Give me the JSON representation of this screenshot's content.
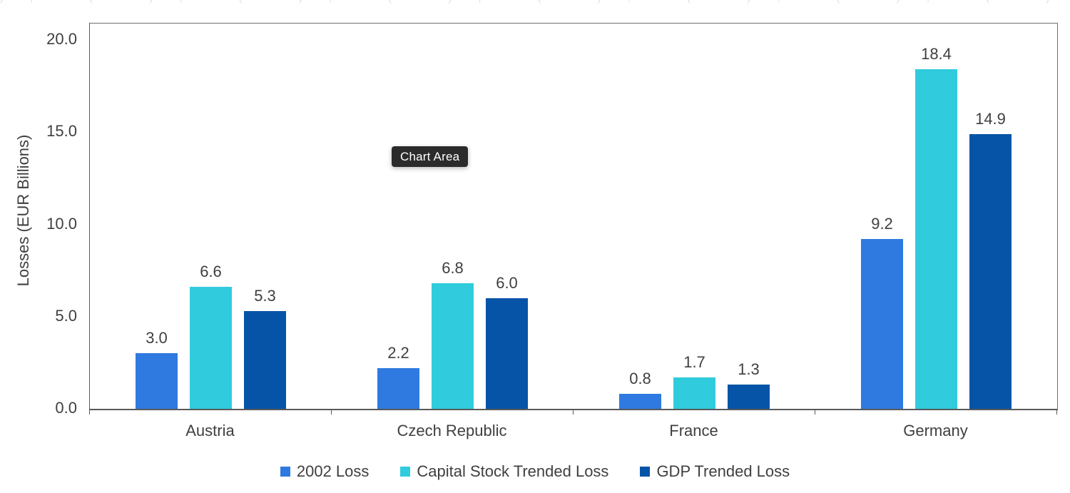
{
  "chart_data": {
    "type": "bar",
    "title": "",
    "xlabel": "",
    "ylabel": "Losses (EUR Billions)",
    "categories": [
      "Austria",
      "Czech Republic",
      "France",
      "Germany"
    ],
    "series": [
      {
        "name": "2002 Loss",
        "color": "#2F7AE0",
        "values": [
          3.0,
          2.2,
          0.8,
          9.2
        ]
      },
      {
        "name": "Capital Stock Trended Loss",
        "color": "#30CCDD",
        "values": [
          6.6,
          6.8,
          1.7,
          18.4
        ]
      },
      {
        "name": "GDP Trended Loss",
        "color": "#0654A7",
        "values": [
          5.3,
          6.0,
          1.3,
          14.9
        ]
      }
    ],
    "value_label_format": "one_decimal",
    "ylim": [
      0,
      20.9
    ],
    "ytick_values": [
      0,
      5,
      10,
      15,
      20
    ],
    "ytick_labels": [
      "0.0",
      "5.0",
      "10.0",
      "15.0",
      "20.0"
    ],
    "grid": false,
    "legend_position": "bottom"
  },
  "tooltip": {
    "label": "Chart Area",
    "background": "#2b2b2b",
    "text_color": "#ffffff"
  },
  "axis": {
    "line_color": "#5c5c5c",
    "text_color": "#3f3f3f"
  },
  "top_edge_artifact": "),  (  ),  (  ),  (  ),  (  ),  (  ),  (  ),  (  ),  (  ),  ("
}
